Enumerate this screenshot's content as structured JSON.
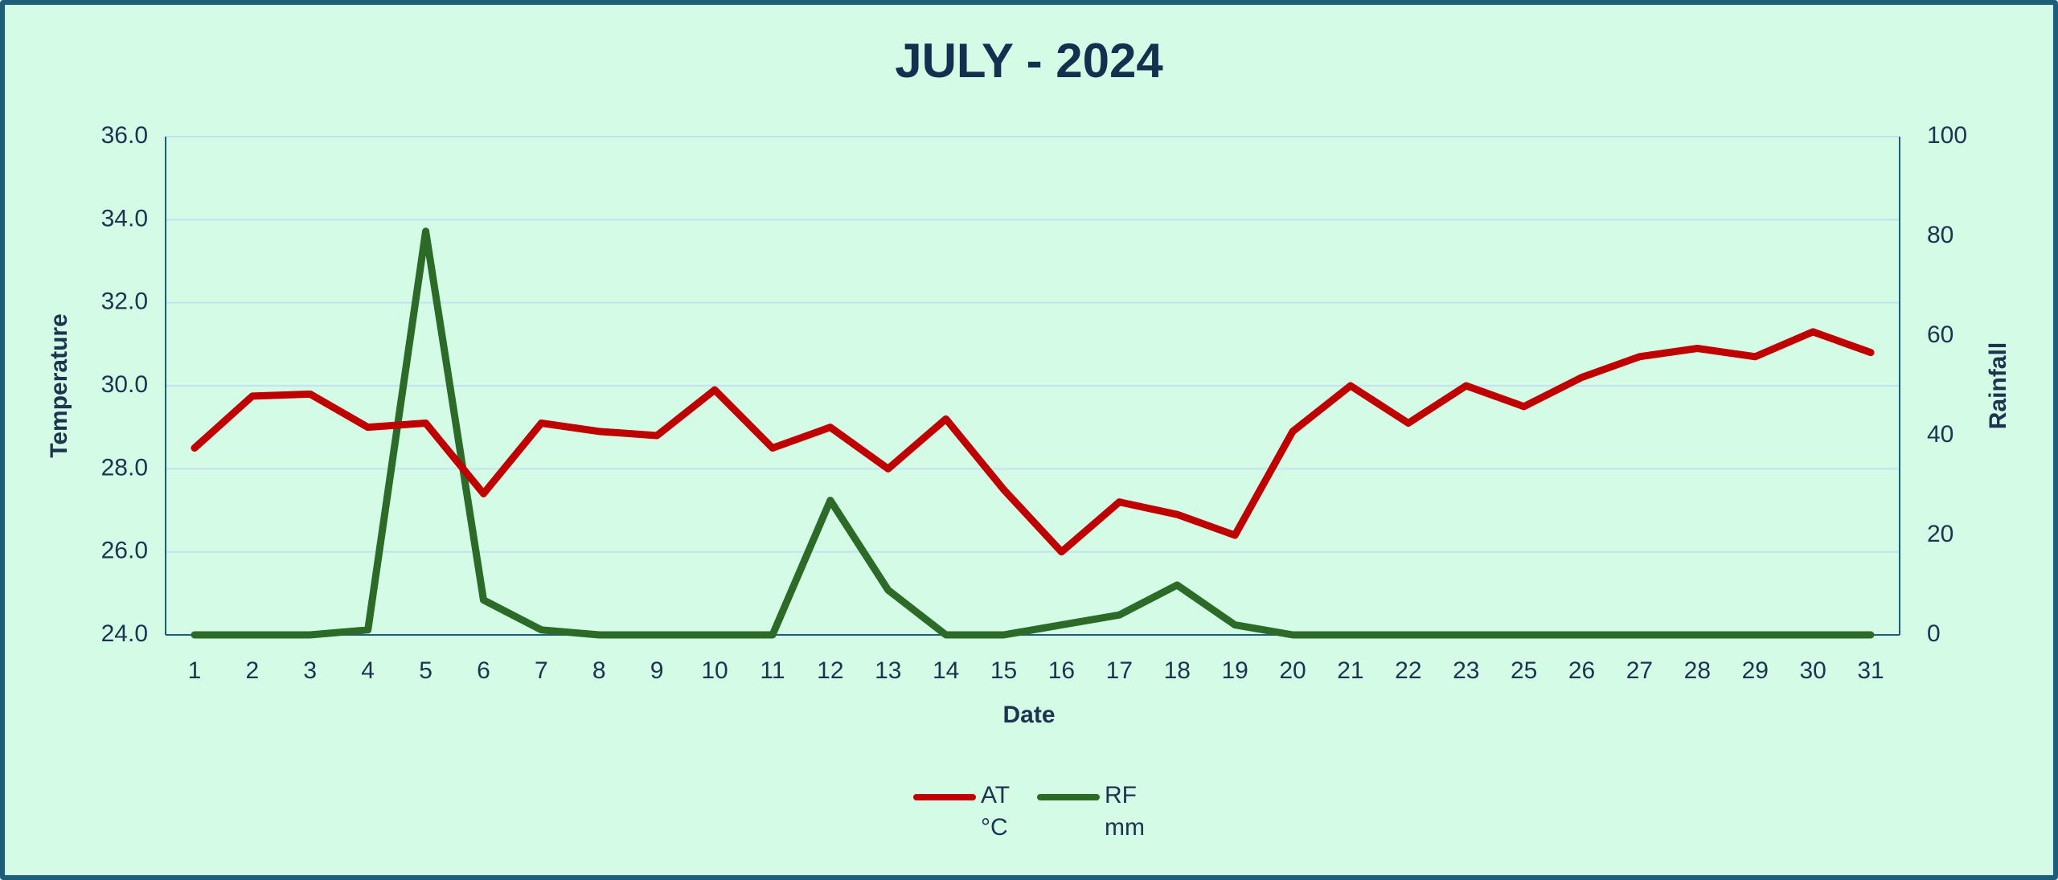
{
  "chart_data": {
    "type": "line",
    "title": "JULY - 2024",
    "x_label": "Date",
    "y_label": "Temperature",
    "y2_label": "Rainfall",
    "categories": [
      "1",
      "2",
      "3",
      "4",
      "5",
      "6",
      "7",
      "8",
      "9",
      "10",
      "11",
      "12",
      "13",
      "14",
      "15",
      "16",
      "17",
      "18",
      "19",
      "20",
      "21",
      "22",
      "23",
      "25",
      "26",
      "27",
      "28",
      "29",
      "30",
      "31"
    ],
    "series": [
      {
        "name": "AT °C",
        "color": "#c00000",
        "axis": "y",
        "values": [
          28.5,
          29.75,
          29.8,
          29.0,
          29.1,
          27.4,
          29.1,
          28.9,
          28.8,
          29.9,
          28.5,
          29.0,
          28.0,
          29.2,
          27.5,
          26.0,
          27.2,
          26.9,
          26.4,
          28.9,
          30.0,
          29.1,
          30.0,
          29.5,
          30.2,
          30.7,
          30.9,
          30.7,
          31.3,
          30.8
        ]
      },
      {
        "name": "RF mm",
        "color": "#2b6a27",
        "axis": "y2",
        "values": [
          0,
          0,
          0,
          1,
          81,
          7,
          1,
          0,
          0,
          0,
          0,
          27,
          9,
          0,
          0,
          2,
          4,
          10,
          2,
          0,
          0,
          0,
          0,
          0,
          0,
          0,
          0,
          0,
          0,
          0
        ]
      }
    ],
    "ylim": [
      24,
      36
    ],
    "yticks": [
      {
        "value": 24,
        "label": "24.0"
      },
      {
        "value": 26,
        "label": "26.0"
      },
      {
        "value": 28,
        "label": "28.0"
      },
      {
        "value": 30,
        "label": "30.0"
      },
      {
        "value": 32,
        "label": "32.0"
      },
      {
        "value": 34,
        "label": "34.0"
      },
      {
        "value": 36,
        "label": "36.0"
      }
    ],
    "y2lim": [
      0,
      100
    ],
    "y2ticks": [
      0,
      20,
      40,
      60,
      80,
      100
    ],
    "grid": true,
    "legend": "bottom"
  }
}
